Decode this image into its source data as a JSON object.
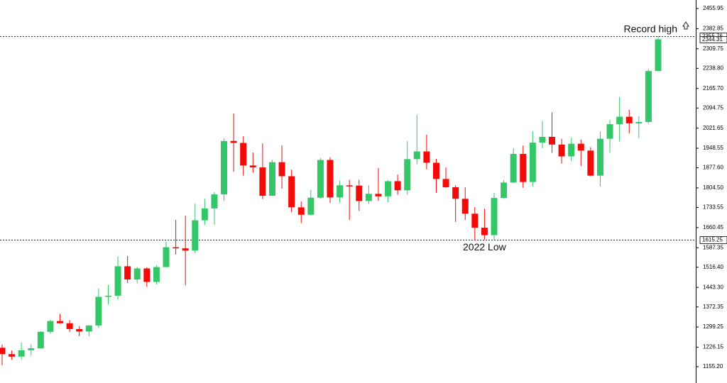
{
  "chart_data": {
    "type": "candlestick",
    "open": [
      1224,
      1201,
      1192,
      1215,
      1222,
      1282,
      1321,
      1313,
      1292,
      1283,
      1305,
      1409,
      1413,
      1520,
      1472,
      1512,
      1463,
      1517,
      1589,
      1585,
      1577,
      1687,
      1730,
      1781,
      1975,
      1968,
      1886,
      1879,
      1776,
      1898,
      1847,
      1734,
      1707,
      1769,
      1906,
      1770,
      1814,
      1813,
      1757,
      1783,
      1774,
      1829,
      1796,
      1909,
      1937,
      1896,
      1837,
      1807,
      1765,
      1711,
      1660,
      1633,
      1768,
      1824,
      1928,
      1826,
      1969,
      1990,
      1962,
      1919,
      1965,
      1940,
      1849,
      1983,
      2036,
      2063,
      2039,
      2044,
      2229
    ],
    "high": [
      1235,
      1214,
      1243,
      1237,
      1284,
      1326,
      1347,
      1324,
      1303,
      1306,
      1439,
      1452,
      1555,
      1557,
      1518,
      1516,
      1524,
      1611,
      1689,
      1704,
      1747,
      1765,
      1789,
      1984,
      2075,
      1992,
      1933,
      1966,
      1906,
      1959,
      1871,
      1755,
      1798,
      1913,
      1916,
      1832,
      1834,
      1834,
      1814,
      1877,
      1832,
      1853,
      1974,
      2070,
      1998,
      1910,
      1879,
      1814,
      1807,
      1735,
      1729,
      1786,
      1833,
      1949,
      1959,
      2010,
      2048,
      2079,
      1983,
      1987,
      1980,
      1953,
      2009,
      2052,
      2135,
      2088,
      2065,
      2236,
      2355.76
    ],
    "low": [
      1160,
      1180,
      1182,
      1196,
      1221,
      1275,
      1311,
      1281,
      1266,
      1266,
      1296,
      1382,
      1400,
      1459,
      1458,
      1445,
      1454,
      1517,
      1563,
      1451,
      1567,
      1670,
      1671,
      1757,
      1863,
      1849,
      1860,
      1764,
      1775,
      1802,
      1717,
      1677,
      1704,
      1765,
      1750,
      1750,
      1688,
      1721,
      1746,
      1758,
      1753,
      1780,
      1780,
      1890,
      1872,
      1787,
      1805,
      1681,
      1688,
      1614,
      1617,
      1616,
      1765,
      1822,
      1805,
      1810,
      1949,
      1932,
      1893,
      1902,
      1884,
      1846,
      1810,
      1932,
      1973,
      2002,
      1984,
      2039,
      2228
    ],
    "close": [
      1201,
      1192,
      1215,
      1222,
      1282,
      1321,
      1313,
      1292,
      1283,
      1305,
      1409,
      1413,
      1520,
      1472,
      1512,
      1463,
      1517,
      1589,
      1585,
      1577,
      1687,
      1730,
      1781,
      1975,
      1968,
      1886,
      1879,
      1776,
      1898,
      1847,
      1734,
      1707,
      1769,
      1906,
      1770,
      1814,
      1813,
      1757,
      1783,
      1774,
      1829,
      1796,
      1909,
      1937,
      1896,
      1837,
      1807,
      1765,
      1711,
      1660,
      1633,
      1768,
      1824,
      1928,
      1826,
      1969,
      1990,
      1962,
      1919,
      1965,
      1940,
      1849,
      1983,
      2036,
      2063,
      2039,
      2044,
      2229,
      2344.31
    ],
    "up_color": "#34c768",
    "down_color": "#f50a0a",
    "ylim": [
      1096,
      2487
    ],
    "yticks": [
      2455.95,
      2382.85,
      2309.75,
      {
        "value": 2238.8,
        "label": "2238.80"
      },
      {
        "value": 2165.7,
        "label": "2165.70"
      },
      2094.75,
      2021.65,
      1948.55,
      {
        "value": 1877.6,
        "label": "1877.60"
      },
      {
        "value": 1804.5,
        "label": "1804.50"
      },
      1733.55,
      1660.45,
      1587.35,
      {
        "value": 1516.4,
        "label": "1516.40"
      },
      {
        "value": 1443.3,
        "label": "1443.30"
      },
      1372.35,
      1299.25,
      1226.15,
      {
        "value": 1155.2,
        "label": "1155.20"
      }
    ],
    "levels": [
      {
        "value": 2355.76,
        "label": "Record high"
      },
      {
        "value": 1615.25,
        "label": "2022 Low"
      }
    ],
    "last_price": 2344.31
  }
}
